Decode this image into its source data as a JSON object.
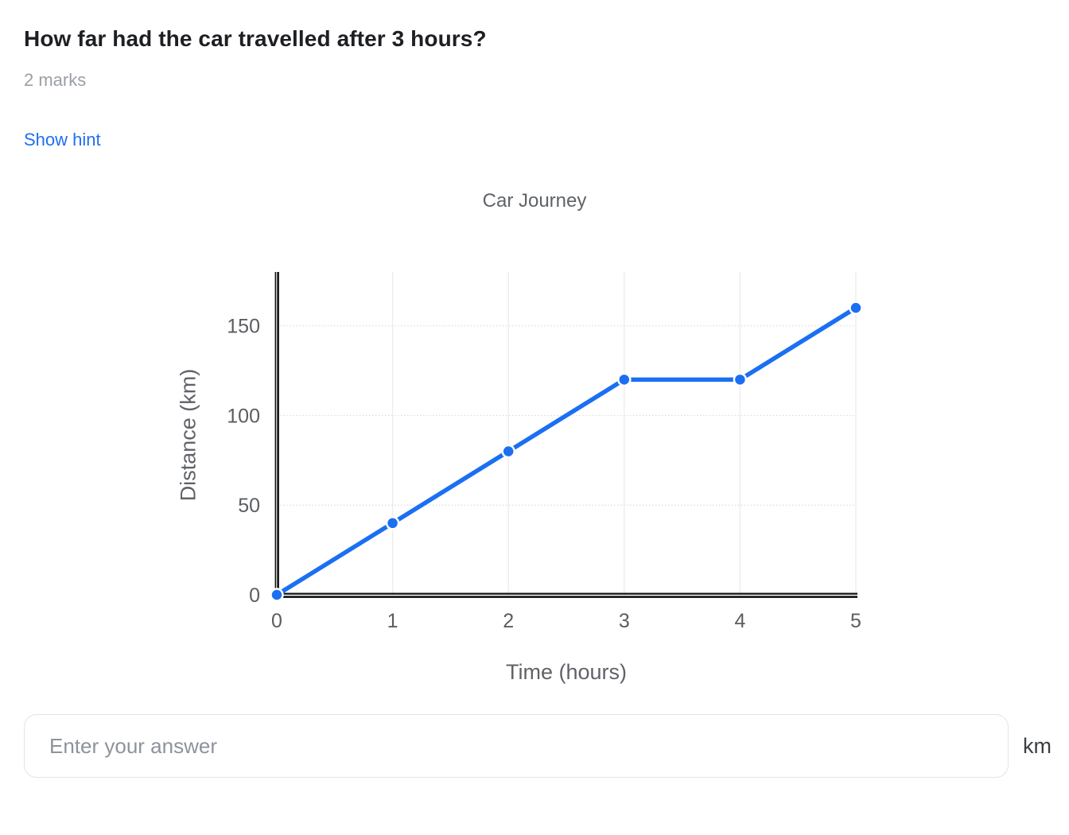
{
  "question": {
    "title": "How far had the car travelled after 3 hours?",
    "marks": "2 marks",
    "hint_link": "Show hint"
  },
  "chart_data": {
    "type": "line",
    "title": "Car Journey",
    "xlabel": "Time (hours)",
    "ylabel": "Distance (km)",
    "x": [
      0,
      1,
      2,
      3,
      4,
      5
    ],
    "values": [
      0,
      40,
      80,
      120,
      120,
      160
    ],
    "xticks": [
      0,
      1,
      2,
      3,
      4,
      5
    ],
    "yticks": [
      0,
      50,
      100,
      150
    ],
    "xlim": [
      0,
      5
    ],
    "ylim": [
      0,
      180
    ],
    "grid": true,
    "legend": "none",
    "line_color": "#1b6ff2",
    "marker_color": "#1b6ff2",
    "axis_color": "#111111",
    "vgrid_color": "#ececec",
    "hgrid_color": "#dcdcdc",
    "tick_color": "#5a5d61"
  },
  "answer": {
    "placeholder": "Enter your answer",
    "unit": "km"
  }
}
